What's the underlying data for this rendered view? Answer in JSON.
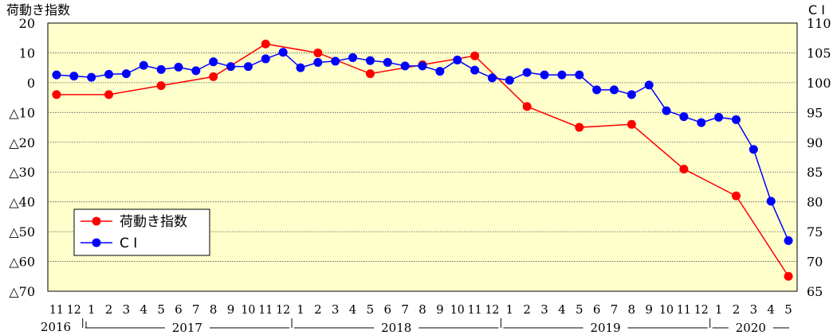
{
  "chart_data": {
    "type": "line",
    "left_axis": {
      "title": "荷動き指数",
      "ylim": [
        -70,
        20
      ],
      "ticks": [
        20,
        10,
        0,
        -10,
        -20,
        -30,
        -40,
        -50,
        -60,
        -70
      ],
      "tick_labels": [
        "20",
        "10",
        "0",
        "△10",
        "△20",
        "△30",
        "△40",
        "△50",
        "△60",
        "△70"
      ]
    },
    "right_axis": {
      "title": "C I",
      "ylim": [
        65,
        110
      ],
      "ticks": [
        110,
        105,
        100,
        95,
        90,
        85,
        80,
        75,
        70,
        65
      ],
      "tick_labels": [
        "110",
        "105",
        "100",
        "95",
        "90",
        "85",
        "80",
        "75",
        "70",
        "65"
      ]
    },
    "grid": "horizontal dotted",
    "legend_placement": "lower-left",
    "x_months": [
      "11",
      "12",
      "1",
      "2",
      "3",
      "4",
      "5",
      "6",
      "7",
      "8",
      "9",
      "10",
      "11",
      "12",
      "1",
      "2",
      "3",
      "4",
      "5",
      "6",
      "7",
      "8",
      "9",
      "10",
      "11",
      "12",
      "1",
      "2",
      "3",
      "4",
      "5",
      "6",
      "7",
      "8",
      "9",
      "10",
      "11",
      "12",
      "1",
      "2",
      "3",
      "4",
      "5"
    ],
    "x_month_values": [
      11,
      12,
      1,
      2,
      3,
      4,
      5,
      6,
      7,
      8,
      9,
      10,
      11,
      12,
      1,
      2,
      3,
      4,
      5,
      6,
      7,
      8,
      9,
      10,
      11,
      12,
      1,
      2,
      3,
      4,
      5,
      6,
      7,
      8,
      9,
      10,
      11,
      12,
      1,
      2,
      3,
      4,
      5
    ],
    "years": [
      "2016",
      "2017",
      "2018",
      "2019",
      "2020"
    ],
    "series": [
      {
        "name": "荷動き指数",
        "axis": "left",
        "color": "#ff0000",
        "points": [
          {
            "i": 0,
            "y": -4
          },
          {
            "i": 3,
            "y": -4
          },
          {
            "i": 6,
            "y": -1
          },
          {
            "i": 9,
            "y": 2
          },
          {
            "i": 12,
            "y": 13
          },
          {
            "i": 15,
            "y": 10
          },
          {
            "i": 18,
            "y": 3
          },
          {
            "i": 21,
            "y": 6
          },
          {
            "i": 24,
            "y": 9
          },
          {
            "i": 27,
            "y": -8
          },
          {
            "i": 30,
            "y": -15
          },
          {
            "i": 33,
            "y": -14
          },
          {
            "i": 36,
            "y": -29
          },
          {
            "i": 39,
            "y": -38
          },
          {
            "i": 42,
            "y": -65
          }
        ]
      },
      {
        "name": "C I",
        "axis": "right",
        "color": "#0000ff",
        "values": [
          101.3,
          101.1,
          100.9,
          101.4,
          101.5,
          102.9,
          102.2,
          102.6,
          102.0,
          103.5,
          102.7,
          102.7,
          104.0,
          105.1,
          102.5,
          103.4,
          103.6,
          104.2,
          103.7,
          103.4,
          102.8,
          102.8,
          101.9,
          103.8,
          102.1,
          100.8,
          100.4,
          101.7,
          101.3,
          101.3,
          101.3,
          98.8,
          98.8,
          98.0,
          99.6,
          95.3,
          94.3,
          93.3,
          94.2,
          93.8,
          88.8,
          80.1,
          73.5
        ]
      }
    ]
  }
}
